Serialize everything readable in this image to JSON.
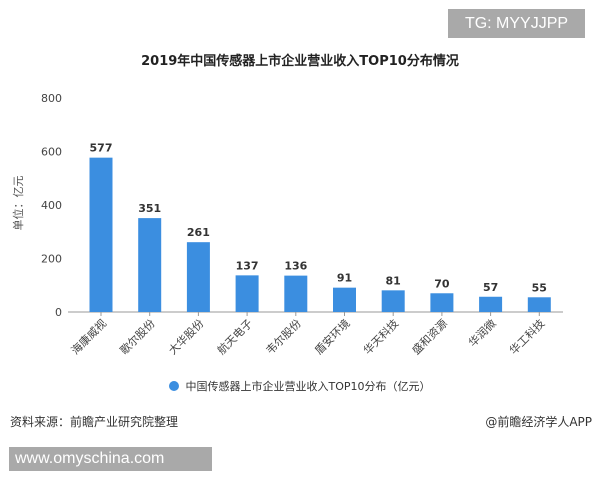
{
  "watermark_tg": "TG: MYYJJPP",
  "source": "资料来源：前瞻产业研究院整理",
  "credit": "@前瞻经济学人APP",
  "site": "www.omyschina.com",
  "chart_data": {
    "type": "bar",
    "title": "2019年中国传感器上市企业营业收入TOP10分布情况",
    "ylabel": "单位：亿元",
    "xlabel": "",
    "ylim": [
      0,
      800
    ],
    "yticks": [
      "0",
      "200",
      "400",
      "600",
      "800"
    ],
    "grid": false,
    "legend": "bottom",
    "color": "#3b8ee0",
    "categories": [
      "海康威视",
      "歌尔股份",
      "大华股份",
      "航天电子",
      "韦尔股份",
      "盾安环境",
      "华天科技",
      "盛和资源",
      "华润微",
      "华工科技"
    ],
    "series": [
      {
        "name": "中国传感器上市企业营业收入TOP10分布（亿元）",
        "values": [
          577,
          351,
          261,
          137,
          136,
          91,
          81,
          70,
          57,
          55
        ]
      }
    ]
  }
}
